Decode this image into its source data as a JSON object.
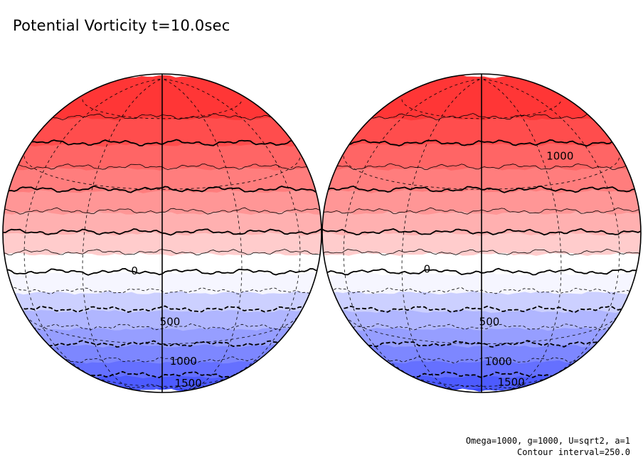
{
  "chart_data": {
    "type": "contour",
    "title": "Potential Vorticity t=10.0sec",
    "params_text": "Omega=1000, g=1000, U=sqrt2, a=1",
    "contour_interval_text": "Contour interval=250.0",
    "contour_interval": 250,
    "projection": "orthographic, two hemispheres",
    "value_range": [
      -2000,
      2000
    ],
    "color_scale": {
      "positive_color": "#ff2b2b",
      "negative_color": "#2b3bff",
      "zero_color": "#ffffff"
    },
    "globes": [
      {
        "name": "left",
        "contour_labels": [
          {
            "text": "0",
            "lat": 0,
            "lon": -10
          },
          {
            "text": "500",
            "lat": -20,
            "lon": 3
          },
          {
            "text": "1000",
            "lat": -40,
            "lon": 10
          },
          {
            "text": "1500",
            "lat": -58,
            "lon": 18
          }
        ]
      },
      {
        "name": "right",
        "contour_labels": [
          {
            "text": "1000",
            "lat": 40,
            "lon": 40
          },
          {
            "text": "0",
            "lat": 0,
            "lon": -20
          },
          {
            "text": "500",
            "lat": -20,
            "lon": 3
          },
          {
            "text": "1000",
            "lat": -40,
            "lon": 8
          },
          {
            "text": "1500",
            "lat": -57,
            "lon": 20
          }
        ]
      }
    ]
  }
}
